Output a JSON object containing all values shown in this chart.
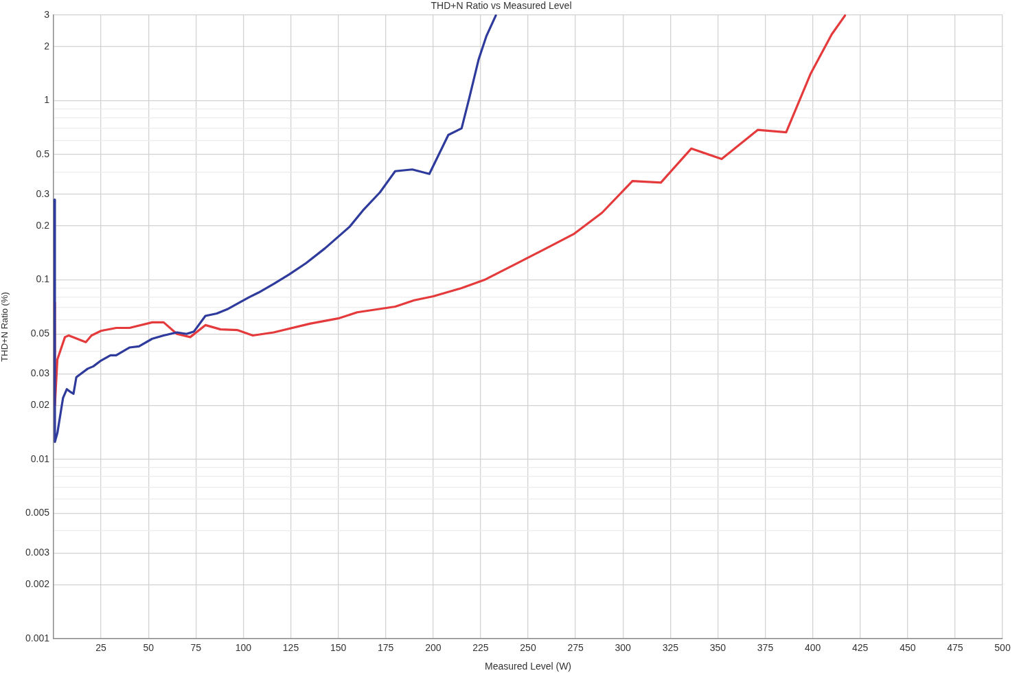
{
  "chart_data": {
    "type": "line",
    "title": "THD+N Ratio vs Measured Level",
    "xlabel": "Measured Level (W)",
    "ylabel": "THD+N Ratio (%)",
    "xlim": [
      0,
      500
    ],
    "xticks": [
      25,
      50,
      75,
      100,
      125,
      150,
      175,
      200,
      225,
      250,
      275,
      300,
      325,
      350,
      375,
      400,
      425,
      450,
      475,
      500
    ],
    "ylim": [
      0.001,
      3
    ],
    "yticks": [
      0.001,
      0.002,
      0.003,
      {
        "value": 0.004,
        "label": null
      },
      0.005,
      {
        "value": 0.006,
        "label": null
      },
      {
        "value": 0.007,
        "label": null
      },
      {
        "value": 0.008,
        "label": null
      },
      {
        "value": 0.009,
        "label": null
      },
      0.01,
      0.02,
      0.03,
      {
        "value": 0.04,
        "label": null
      },
      0.05,
      {
        "value": 0.06,
        "label": null
      },
      {
        "value": 0.07,
        "label": null
      },
      {
        "value": 0.08,
        "label": null
      },
      {
        "value": 0.09,
        "label": null
      },
      0.1,
      0.2,
      0.3,
      {
        "value": 0.4,
        "label": null
      },
      0.5,
      {
        "value": 0.6,
        "label": null
      },
      {
        "value": 0.7,
        "label": null
      },
      {
        "value": 0.8,
        "label": null
      },
      {
        "value": 0.9,
        "label": null
      },
      1,
      2,
      3
    ],
    "log": "y",
    "grid": true,
    "marker": "none",
    "line_style": "solid",
    "series": [
      {
        "color": "#2e3b9c",
        "x": [
          0.5,
          0.7,
          2,
          5,
          7,
          9,
          10.5,
          12,
          18,
          21,
          25,
          30,
          33,
          40,
          45,
          52,
          58,
          65,
          70,
          74,
          80,
          86,
          92,
          103,
          108,
          116,
          124,
          133,
          143,
          156,
          163,
          172,
          180,
          189,
          198,
          208,
          215,
          219,
          224,
          228,
          233
        ],
        "values": [
          0.28,
          0.0125,
          0.014,
          0.022,
          0.0246,
          0.0237,
          0.0232,
          0.0287,
          0.032,
          0.033,
          0.0355,
          0.038,
          0.038,
          0.042,
          0.0426,
          0.047,
          0.049,
          0.051,
          0.05,
          0.0516,
          0.063,
          0.065,
          0.069,
          0.08,
          0.085,
          0.095,
          0.107,
          0.124,
          0.15,
          0.198,
          0.244,
          0.308,
          0.404,
          0.413,
          0.39,
          0.643,
          0.7,
          1.03,
          1.7,
          2.28,
          2.98
        ]
      },
      {
        "color": "#e53a3c",
        "x": [
          0.5,
          0.7,
          2,
          6,
          8,
          17,
          20,
          25,
          33,
          40,
          52,
          58,
          65,
          72,
          80,
          88,
          97,
          105,
          116,
          135,
          150,
          160,
          180,
          190,
          200,
          215,
          227,
          243,
          258,
          274,
          289,
          305,
          320,
          336,
          352,
          371,
          386,
          399,
          410,
          417
        ],
        "values": [
          0.075,
          0.02,
          0.036,
          0.048,
          0.049,
          0.045,
          0.049,
          0.052,
          0.054,
          0.054,
          0.058,
          0.058,
          0.05,
          0.048,
          0.056,
          0.053,
          0.0525,
          0.049,
          0.051,
          0.057,
          0.061,
          0.066,
          0.071,
          0.077,
          0.081,
          0.09,
          0.1,
          0.122,
          0.147,
          0.18,
          0.237,
          0.356,
          0.349,
          0.54,
          0.472,
          0.686,
          0.665,
          1.42,
          2.34,
          2.98
        ]
      }
    ]
  }
}
